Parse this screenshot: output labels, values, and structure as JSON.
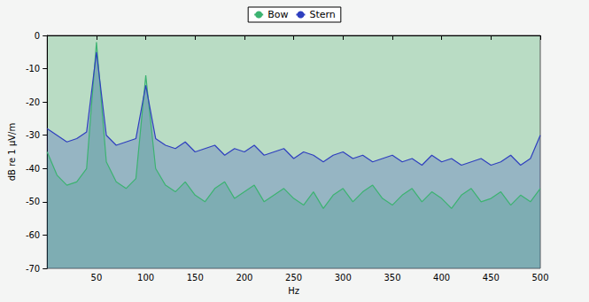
{
  "chart_data": {
    "type": "line",
    "x_label": "Hz",
    "y_label": "dB re 1 µV/m",
    "x": [
      0,
      10,
      20,
      30,
      40,
      50,
      60,
      70,
      80,
      90,
      100,
      110,
      120,
      130,
      140,
      150,
      160,
      170,
      180,
      190,
      200,
      210,
      220,
      230,
      240,
      250,
      260,
      270,
      280,
      290,
      300,
      310,
      320,
      330,
      340,
      350,
      360,
      370,
      380,
      390,
      400,
      410,
      420,
      430,
      440,
      450,
      460,
      470,
      480,
      490,
      500
    ],
    "series": [
      {
        "name": "Bow",
        "color": "#3cb371",
        "values": [
          -35,
          -42,
          -45,
          -44,
          -40,
          -2,
          -38,
          -44,
          -46,
          -43,
          -12,
          -40,
          -45,
          -47,
          -44,
          -48,
          -50,
          -46,
          -44,
          -49,
          -47,
          -45,
          -50,
          -48,
          -46,
          -49,
          -51,
          -47,
          -52,
          -48,
          -46,
          -50,
          -47,
          -45,
          -49,
          -51,
          -48,
          -46,
          -50,
          -47,
          -49,
          -52,
          -48,
          -46,
          -50,
          -49,
          -47,
          -51,
          -48,
          -50,
          -46
        ]
      },
      {
        "name": "Stern",
        "color": "#2f3fbf",
        "values": [
          -28,
          -30,
          -32,
          -31,
          -29,
          -5,
          -30,
          -33,
          -32,
          -31,
          -15,
          -31,
          -33,
          -34,
          -32,
          -35,
          -34,
          -33,
          -36,
          -34,
          -35,
          -33,
          -36,
          -35,
          -34,
          -37,
          -35,
          -36,
          -38,
          -36,
          -35,
          -37,
          -36,
          -38,
          -37,
          -36,
          -38,
          -37,
          -39,
          -36,
          -38,
          -37,
          -39,
          -38,
          -37,
          -39,
          -38,
          -36,
          -39,
          -37,
          -30
        ]
      }
    ],
    "xlim": [
      0,
      500
    ],
    "xticks": [
      50,
      100,
      150,
      200,
      250,
      300,
      350,
      400,
      450,
      500
    ],
    "ylim": [
      -70,
      0
    ],
    "yticks": [
      -70,
      -60,
      -50,
      -40,
      -30,
      -20,
      -10,
      0
    ],
    "grid": false,
    "legend": "top"
  }
}
